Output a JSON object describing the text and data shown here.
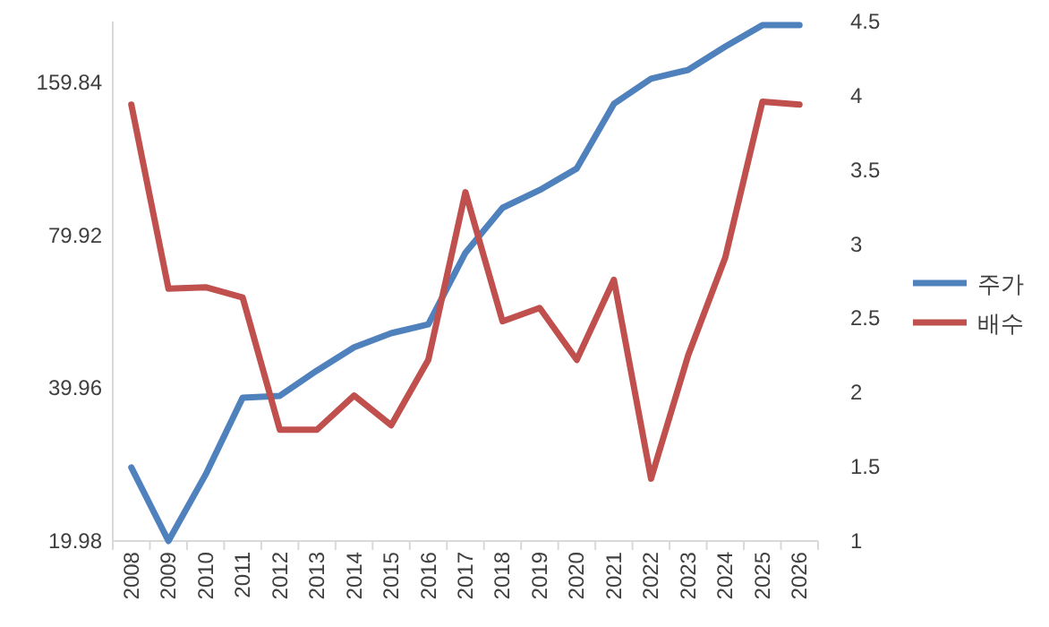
{
  "chart_data": {
    "type": "line",
    "log": "y",
    "legend": "right",
    "categories": [
      "2008",
      "2009",
      "2010",
      "2011",
      "2012",
      "2013",
      "2014",
      "2015",
      "2016",
      "2017",
      "2018",
      "2019",
      "2020",
      "2021",
      "2022",
      "2023",
      "2024",
      "2025",
      "2026"
    ],
    "ylim": [
      19.98,
      211
    ],
    "yticks": [
      19.98,
      39.96,
      79.92,
      159.84
    ],
    "y2lim": [
      1,
      4.5
    ],
    "y2ticks": [
      1,
      1.5,
      2,
      2.5,
      3,
      3.5,
      4,
      4.5
    ],
    "series": [
      {
        "name": "주가",
        "color": "#4f81bd",
        "axis": "y",
        "values": [
          27.9,
          19.98,
          27.0,
          38.3,
          38.6,
          43.3,
          48.1,
          51.3,
          53.4,
          73.9,
          90.6,
          98.2,
          108.3,
          145.2,
          162.7,
          169.4,
          188.3,
          207.5,
          207.5
        ]
      },
      {
        "name": "배수",
        "color": "#c0504d",
        "axis": "y2",
        "values": [
          3.94,
          2.7,
          2.71,
          2.64,
          1.75,
          1.75,
          1.98,
          1.78,
          2.22,
          3.35,
          2.48,
          2.57,
          2.22,
          2.76,
          1.42,
          2.25,
          2.91,
          3.96,
          3.94
        ]
      }
    ]
  }
}
